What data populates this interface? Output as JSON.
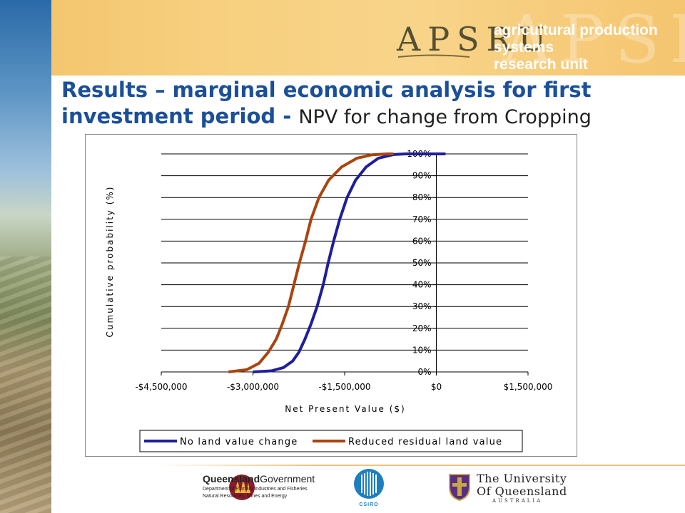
{
  "header": {
    "logo_text": "APSRU",
    "tagline_line1": "agricultural production systems",
    "tagline_line2": "research unit"
  },
  "title": {
    "bold_part_1": "Results – marginal economic analysis for first",
    "bold_part_2": "investment period - ",
    "normal_part": "NPV for change from Cropping"
  },
  "colors": {
    "title_blue": "#1b4f99",
    "series_blue": "#1f1f99",
    "series_brown": "#a8450f",
    "banner": "#f5c56f"
  },
  "chart_data": {
    "type": "line",
    "xlabel": "Net Present Value ($)",
    "ylabel": "Cumulative probability (%)",
    "xlim": [
      -4500000,
      1500000
    ],
    "ylim": [
      0,
      100
    ],
    "x_ticks": [
      -4500000,
      -3000000,
      -1500000,
      0,
      1500000
    ],
    "x_tick_labels": [
      "-$4,500,000",
      "-$3,000,000",
      "-$1,500,000",
      "$0",
      "$1,500,000"
    ],
    "y_ticks": [
      0,
      10,
      20,
      30,
      40,
      50,
      60,
      70,
      80,
      90,
      100
    ],
    "y_tick_labels": [
      "0%",
      "10%",
      "20%",
      "30%",
      "40%",
      "50%",
      "60%",
      "70%",
      "80%",
      "90%",
      "100%"
    ],
    "grid": "horizontal",
    "legend_position": "bottom",
    "series": [
      {
        "name": "No land value change",
        "color": "#1f1f99",
        "points": [
          [
            -3000000,
            0
          ],
          [
            -2700000,
            0.5
          ],
          [
            -2500000,
            2
          ],
          [
            -2350000,
            5
          ],
          [
            -2250000,
            9
          ],
          [
            -2150000,
            15
          ],
          [
            -2050000,
            22
          ],
          [
            -1950000,
            30
          ],
          [
            -1850000,
            40
          ],
          [
            -1770000,
            50
          ],
          [
            -1680000,
            60
          ],
          [
            -1580000,
            70
          ],
          [
            -1460000,
            80
          ],
          [
            -1320000,
            88
          ],
          [
            -1150000,
            94
          ],
          [
            -950000,
            98
          ],
          [
            -700000,
            99.7
          ],
          [
            -500000,
            100
          ],
          [
            0,
            100
          ],
          [
            150000,
            100
          ]
        ]
      },
      {
        "name": "Reduced residual land value",
        "color": "#a8450f",
        "points": [
          [
            -3400000,
            0
          ],
          [
            -3100000,
            1
          ],
          [
            -2900000,
            4
          ],
          [
            -2750000,
            9
          ],
          [
            -2620000,
            15
          ],
          [
            -2520000,
            22
          ],
          [
            -2420000,
            30
          ],
          [
            -2330000,
            40
          ],
          [
            -2240000,
            50
          ],
          [
            -2140000,
            60
          ],
          [
            -2050000,
            70
          ],
          [
            -1920000,
            80
          ],
          [
            -1760000,
            88
          ],
          [
            -1550000,
            94
          ],
          [
            -1300000,
            98
          ],
          [
            -1050000,
            99.6
          ],
          [
            -800000,
            100
          ],
          [
            -700000,
            100
          ]
        ]
      }
    ]
  },
  "footer": {
    "qld_title_bold": "Queensland",
    "qld_title_normal": "Government",
    "qld_dept1": "Department of Primary Industries and Fisheries",
    "qld_dept2": "Natural Resources, Mines and Energy",
    "csiro": "CSIRO",
    "uq_line1": "The University",
    "uq_line2": "Of Queensland",
    "uq_line3": "AUSTRALIA"
  }
}
